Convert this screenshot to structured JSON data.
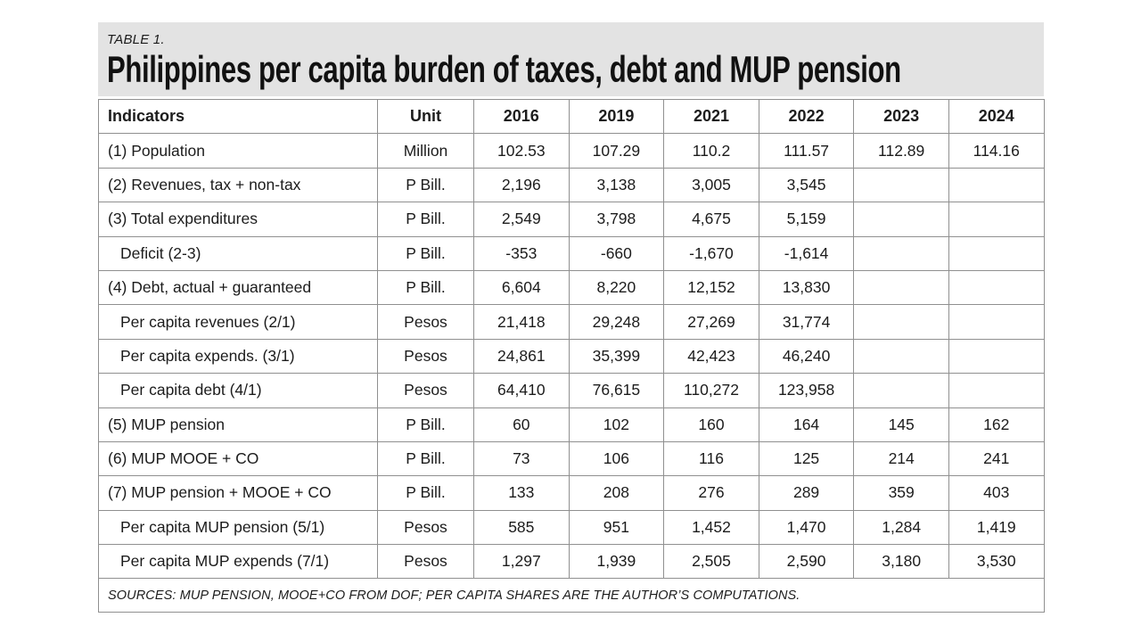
{
  "chart_data": {
    "type": "table",
    "table_label": "TABLE 1.",
    "title": "Philippines per capita burden of taxes, debt and MUP pension",
    "columns": [
      "Indicators",
      "Unit",
      "2016",
      "2019",
      "2021",
      "2022",
      "2023",
      "2024"
    ],
    "rows": [
      {
        "indicator": "(1) Population",
        "indent": false,
        "unit": "Million",
        "values": [
          "102.53",
          "107.29",
          "110.2",
          "111.57",
          "112.89",
          "114.16"
        ]
      },
      {
        "indicator": "(2) Revenues, tax + non-tax",
        "indent": false,
        "unit": "P Bill.",
        "values": [
          "2,196",
          "3,138",
          "3,005",
          "3,545",
          "",
          ""
        ]
      },
      {
        "indicator": "(3) Total expenditures",
        "indent": false,
        "unit": "P Bill.",
        "values": [
          "2,549",
          "3,798",
          "4,675",
          "5,159",
          "",
          ""
        ]
      },
      {
        "indicator": "Deficit (2-3)",
        "indent": true,
        "unit": "P Bill.",
        "values": [
          "-353",
          "-660",
          "-1,670",
          "-1,614",
          "",
          ""
        ]
      },
      {
        "indicator": "(4) Debt, actual + guaranteed",
        "indent": false,
        "unit": "P Bill.",
        "values": [
          "6,604",
          "8,220",
          "12,152",
          "13,830",
          "",
          ""
        ]
      },
      {
        "indicator": "Per capita revenues (2/1)",
        "indent": true,
        "unit": "Pesos",
        "values": [
          "21,418",
          "29,248",
          "27,269",
          "31,774",
          "",
          ""
        ]
      },
      {
        "indicator": "Per capita expends. (3/1)",
        "indent": true,
        "unit": "Pesos",
        "values": [
          "24,861",
          "35,399",
          "42,423",
          "46,240",
          "",
          ""
        ]
      },
      {
        "indicator": "Per capita debt (4/1)",
        "indent": true,
        "unit": "Pesos",
        "values": [
          "64,410",
          "76,615",
          "110,272",
          "123,958",
          "",
          ""
        ]
      },
      {
        "indicator": "(5) MUP pension",
        "indent": false,
        "unit": "P Bill.",
        "values": [
          "60",
          "102",
          "160",
          "164",
          "145",
          "162"
        ]
      },
      {
        "indicator": "(6) MUP MOOE + CO",
        "indent": false,
        "unit": "P Bill.",
        "values": [
          "73",
          "106",
          "116",
          "125",
          "214",
          "241"
        ]
      },
      {
        "indicator": "(7) MUP pension + MOOE + CO",
        "indent": false,
        "unit": "P Bill.",
        "values": [
          "133",
          "208",
          "276",
          "289",
          "359",
          "403"
        ]
      },
      {
        "indicator": "Per capita MUP pension (5/1)",
        "indent": true,
        "unit": "Pesos",
        "values": [
          "585",
          "951",
          "1,452",
          "1,470",
          "1,284",
          "1,419"
        ]
      },
      {
        "indicator": "Per capita MUP expends (7/1)",
        "indent": true,
        "unit": "Pesos",
        "values": [
          "1,297",
          "1,939",
          "2,505",
          "2,590",
          "3,180",
          "3,530"
        ]
      }
    ],
    "source_note": "SOURCES: MUP PENSION, MOOE+CO FROM DOF; PER CAPITA SHARES ARE THE AUTHOR’S COMPUTATIONS.",
    "layout": {
      "legend_position": "none",
      "grid": "full-borders"
    },
    "colors": {
      "title_band_bg": "#e3e3e3",
      "border": "#909090",
      "text": "#1c1c1c",
      "background": "#ffffff"
    }
  }
}
